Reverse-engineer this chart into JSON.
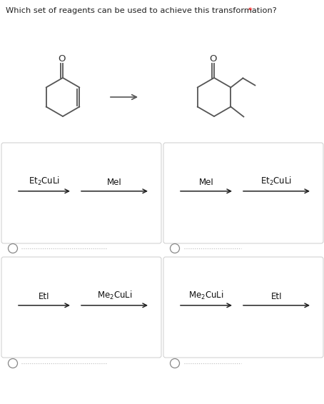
{
  "title": "Which set of reagents can be used to achieve this transformation? ",
  "title_asterisk": "*",
  "background_color": "#ffffff",
  "box_edge_color": "#cccccc",
  "figsize": [
    4.54,
    5.66
  ],
  "dpi": 100,
  "options": [
    {
      "r1": "Et$_2$CuLi",
      "r2": "MeI"
    },
    {
      "r1": "MeI",
      "r2": "Et$_2$CuLi"
    },
    {
      "r1": "EtI",
      "r2": "Me$_2$CuLi"
    },
    {
      "r1": "Me$_2$CuLi",
      "r2": "EtI"
    }
  ]
}
